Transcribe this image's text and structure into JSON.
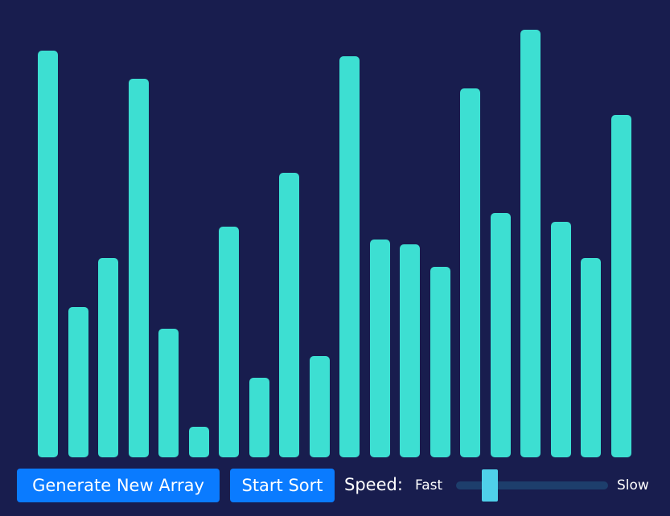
{
  "bars": {
    "values": [
      506,
      187,
      248,
      471,
      160,
      38,
      287,
      99,
      354,
      126,
      499,
      271,
      265,
      237,
      459,
      304,
      532,
      293,
      248,
      426
    ],
    "color": "#3ddfd2"
  },
  "controls": {
    "generate_label": "Generate New Array",
    "sort_label": "Start Sort",
    "speed_label": "Speed:",
    "fast_label": "Fast",
    "slow_label": "Slow",
    "speed_fraction": 0.19,
    "accent_color": "#0a7bff"
  },
  "colors": {
    "background": "#181d4e",
    "slider_track": "#1d3e6c",
    "slider_thumb": "#4fd0ea"
  }
}
